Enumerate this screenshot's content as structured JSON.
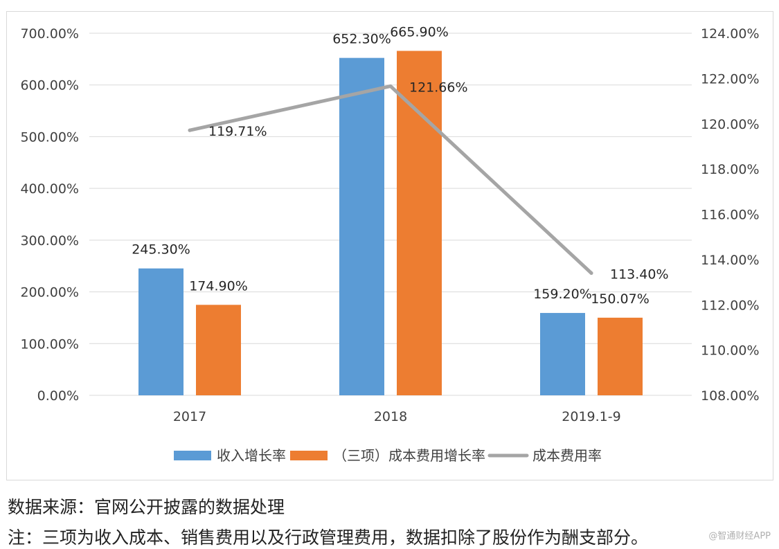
{
  "chart_data": {
    "type": "bar",
    "categories": [
      "2017",
      "2018",
      "2019.1-9"
    ],
    "series": [
      {
        "name": "收入增长率",
        "kind": "bar",
        "axis": "left",
        "color": "#5b9bd5",
        "values": [
          245.3,
          652.3,
          159.2
        ],
        "labels": [
          "245.30%",
          "652.30%",
          "159.20%"
        ]
      },
      {
        "name": "（三项）成本费用增长率",
        "kind": "bar",
        "axis": "left",
        "color": "#ed7d31",
        "values": [
          174.9,
          665.9,
          150.07
        ],
        "labels": [
          "174.90%",
          "665.90%",
          "150.07%"
        ]
      },
      {
        "name": "成本费用率",
        "kind": "line",
        "axis": "right",
        "color": "#a5a5a5",
        "values": [
          119.71,
          121.66,
          113.4
        ],
        "labels": [
          "119.71%",
          "121.66%",
          "113.40%"
        ]
      }
    ],
    "left_axis": {
      "min": 0,
      "max": 700,
      "step": 100,
      "ticks": [
        "0.00%",
        "100.00%",
        "200.00%",
        "300.00%",
        "400.00%",
        "500.00%",
        "600.00%",
        "700.00%"
      ]
    },
    "right_axis": {
      "min": 108,
      "max": 124,
      "step": 2,
      "ticks": [
        "108.00%",
        "110.00%",
        "112.00%",
        "114.00%",
        "116.00%",
        "118.00%",
        "120.00%",
        "122.00%",
        "124.00%"
      ]
    },
    "grid": true,
    "legend_position": "bottom"
  },
  "notes": {
    "source": "数据来源：官网公开披露的数据处理",
    "remark": "注：三项为收入成本、销售费用以及行政管理费用，数据扣除了股份作为酬支部分。"
  },
  "watermark": "@智通财经APP",
  "colors": {
    "grid": "#d9d9d9",
    "axis_text": "#404040",
    "label_text": "#262626"
  }
}
